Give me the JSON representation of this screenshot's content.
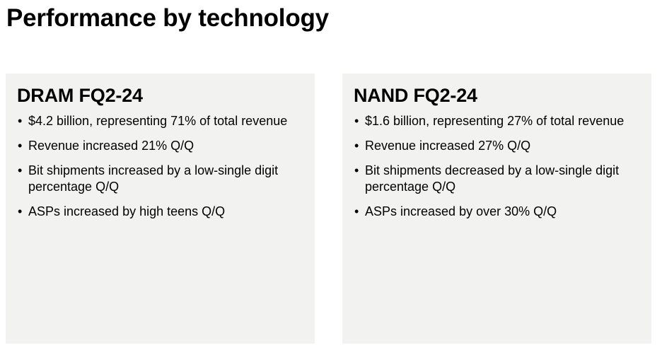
{
  "page": {
    "title": "Performance by technology"
  },
  "panels": [
    {
      "heading": "DRAM FQ2-24",
      "bullets": [
        "$4.2 billion, representing 71% of total revenue",
        "Revenue increased 21% Q/Q",
        "Bit shipments increased by a low-single digit percentage Q/Q",
        "ASPs increased by high teens Q/Q"
      ]
    },
    {
      "heading": "NAND FQ2-24",
      "bullets": [
        "$1.6 billion, representing 27% of total revenue",
        "Revenue increased 27% Q/Q",
        "Bit shipments decreased by a low-single digit percentage Q/Q",
        "ASPs increased by over 30% Q/Q"
      ]
    }
  ],
  "bullet_glyph": "•",
  "colors": {
    "panel_background": "#f2f2f0",
    "text": "#000000"
  }
}
